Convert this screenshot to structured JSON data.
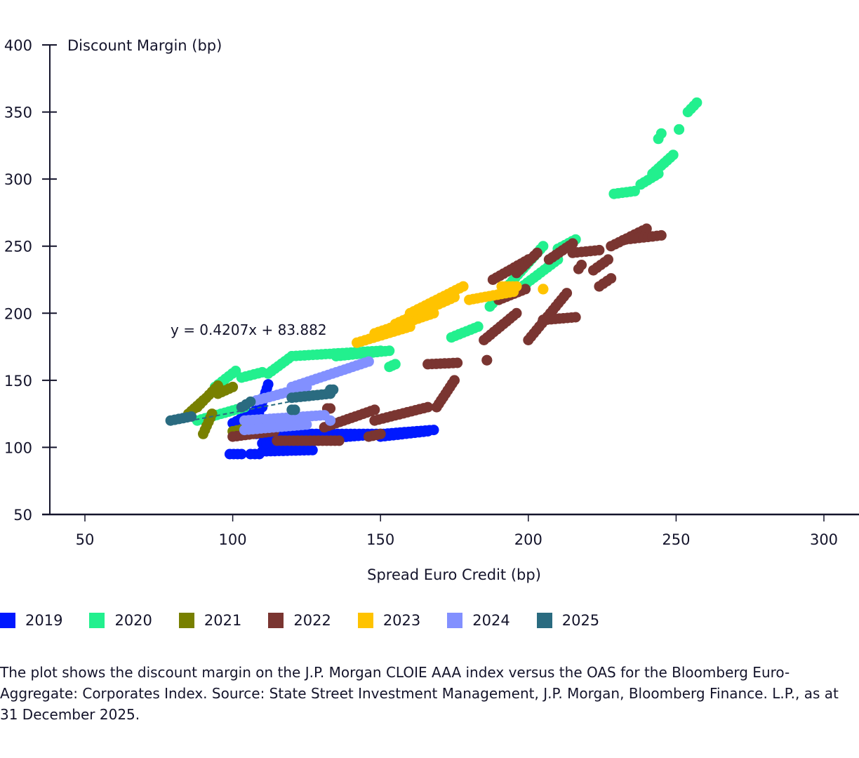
{
  "chart_data": {
    "type": "scatter",
    "title": "",
    "xlabel": "Spread Euro Credit (bp)",
    "ylabel": "Discount Margin (bp)",
    "xlim": [
      40,
      310
    ],
    "ylim": [
      50,
      400
    ],
    "x_ticks": [
      50,
      100,
      150,
      200,
      250,
      300
    ],
    "y_ticks": [
      50,
      100,
      150,
      200,
      250,
      300,
      350,
      400
    ],
    "grid": false,
    "legend_position": "bottom",
    "trendline": {
      "equation": "y = 0.4207x + 83.882",
      "slope": 0.4207,
      "intercept": 83.882,
      "x_range": [
        85,
        125
      ],
      "style": "dashed",
      "color": "#2a6b80"
    },
    "series": [
      {
        "name": "2019",
        "color": "#0019ff",
        "segments": [
          {
            "x0": 99,
            "x1": 103,
            "y0": 95,
            "y1": 95
          },
          {
            "x0": 106,
            "x1": 109,
            "y0": 95,
            "y1": 95
          },
          {
            "x0": 110,
            "x1": 127,
            "y0": 97,
            "y1": 98
          },
          {
            "x0": 110,
            "x1": 168,
            "y0": 103,
            "y1": 113
          },
          {
            "x0": 108,
            "x1": 150,
            "y0": 110,
            "y1": 110
          },
          {
            "x0": 108,
            "x1": 112,
            "y0": 120,
            "y1": 147
          },
          {
            "x0": 100,
            "x1": 110,
            "y0": 118,
            "y1": 130
          },
          {
            "x0": 150,
            "x1": 166,
            "y0": 108,
            "y1": 112
          }
        ]
      },
      {
        "name": "2020",
        "color": "#22f08e",
        "segments": [
          {
            "x0": 94,
            "x1": 101,
            "y0": 145,
            "y1": 157
          },
          {
            "x0": 103,
            "x1": 110,
            "y0": 152,
            "y1": 156
          },
          {
            "x0": 112,
            "x1": 120,
            "y0": 155,
            "y1": 168
          },
          {
            "x0": 120,
            "x1": 150,
            "y0": 168,
            "y1": 172
          },
          {
            "x0": 135,
            "x1": 153,
            "y0": 168,
            "y1": 172
          },
          {
            "x0": 88,
            "x1": 104,
            "y0": 120,
            "y1": 130
          },
          {
            "x0": 153,
            "x1": 155,
            "y0": 160,
            "y1": 162
          },
          {
            "x0": 174,
            "x1": 183,
            "y0": 182,
            "y1": 190
          },
          {
            "x0": 187,
            "x1": 205,
            "y0": 205,
            "y1": 250
          },
          {
            "x0": 195,
            "x1": 210,
            "y0": 215,
            "y1": 240
          },
          {
            "x0": 210,
            "x1": 216,
            "y0": 248,
            "y1": 255
          },
          {
            "x0": 229,
            "x1": 236,
            "y0": 289,
            "y1": 291
          },
          {
            "x0": 238,
            "x1": 244,
            "y0": 296,
            "y1": 304
          },
          {
            "x0": 242,
            "x1": 249,
            "y0": 304,
            "y1": 318
          },
          {
            "x0": 244,
            "x1": 245,
            "y0": 330,
            "y1": 334
          },
          {
            "x0": 251,
            "x1": 251,
            "y0": 337,
            "y1": 337
          },
          {
            "x0": 254,
            "x1": 257,
            "y0": 350,
            "y1": 357
          }
        ]
      },
      {
        "name": "2021",
        "color": "#788000",
        "segments": [
          {
            "x0": 85,
            "x1": 90,
            "y0": 125,
            "y1": 135
          },
          {
            "x0": 88,
            "x1": 95,
            "y0": 130,
            "y1": 146
          },
          {
            "x0": 90,
            "x1": 93,
            "y0": 110,
            "y1": 125
          },
          {
            "x0": 95,
            "x1": 100,
            "y0": 140,
            "y1": 145
          },
          {
            "x0": 100,
            "x1": 113,
            "y0": 112,
            "y1": 118
          }
        ]
      },
      {
        "name": "2022",
        "color": "#7a3531",
        "segments": [
          {
            "x0": 100,
            "x1": 114,
            "y0": 108,
            "y1": 112
          },
          {
            "x0": 115,
            "x1": 136,
            "y0": 105,
            "y1": 105
          },
          {
            "x0": 131,
            "x1": 148,
            "y0": 115,
            "y1": 128
          },
          {
            "x0": 148,
            "x1": 166,
            "y0": 120,
            "y1": 130
          },
          {
            "x0": 132,
            "x1": 133,
            "y0": 129,
            "y1": 129
          },
          {
            "x0": 146,
            "x1": 150,
            "y0": 108,
            "y1": 110
          },
          {
            "x0": 166,
            "x1": 176,
            "y0": 162,
            "y1": 163
          },
          {
            "x0": 169,
            "x1": 175,
            "y0": 130,
            "y1": 150
          },
          {
            "x0": 186,
            "x1": 186,
            "y0": 165,
            "y1": 165
          },
          {
            "x0": 185,
            "x1": 196,
            "y0": 180,
            "y1": 200
          },
          {
            "x0": 188,
            "x1": 200,
            "y0": 225,
            "y1": 240
          },
          {
            "x0": 196,
            "x1": 203,
            "y0": 230,
            "y1": 245
          },
          {
            "x0": 190,
            "x1": 199,
            "y0": 210,
            "y1": 218
          },
          {
            "x0": 200,
            "x1": 213,
            "y0": 180,
            "y1": 215
          },
          {
            "x0": 205,
            "x1": 216,
            "y0": 195,
            "y1": 197
          },
          {
            "x0": 207,
            "x1": 215,
            "y0": 240,
            "y1": 252
          },
          {
            "x0": 215,
            "x1": 224,
            "y0": 245,
            "y1": 247
          },
          {
            "x0": 217,
            "x1": 218,
            "y0": 233,
            "y1": 236
          },
          {
            "x0": 222,
            "x1": 227,
            "y0": 232,
            "y1": 240
          },
          {
            "x0": 224,
            "x1": 228,
            "y0": 220,
            "y1": 226
          },
          {
            "x0": 228,
            "x1": 240,
            "y0": 250,
            "y1": 263
          },
          {
            "x0": 233,
            "x1": 245,
            "y0": 255,
            "y1": 258
          }
        ]
      },
      {
        "name": "2023",
        "color": "#ffc300",
        "segments": [
          {
            "x0": 142,
            "x1": 160,
            "y0": 178,
            "y1": 190
          },
          {
            "x0": 148,
            "x1": 168,
            "y0": 185,
            "y1": 200
          },
          {
            "x0": 155,
            "x1": 175,
            "y0": 192,
            "y1": 212
          },
          {
            "x0": 160,
            "x1": 178,
            "y0": 200,
            "y1": 220
          },
          {
            "x0": 180,
            "x1": 195,
            "y0": 210,
            "y1": 216
          },
          {
            "x0": 191,
            "x1": 196,
            "y0": 220,
            "y1": 220
          },
          {
            "x0": 205,
            "x1": 205,
            "y0": 218,
            "y1": 218
          }
        ]
      },
      {
        "name": "2024",
        "color": "#8290ff",
        "segments": [
          {
            "x0": 108,
            "x1": 125,
            "y0": 135,
            "y1": 145
          },
          {
            "x0": 120,
            "x1": 146,
            "y0": 145,
            "y1": 164
          },
          {
            "x0": 104,
            "x1": 131,
            "y0": 120,
            "y1": 124
          },
          {
            "x0": 104,
            "x1": 125,
            "y0": 113,
            "y1": 117
          },
          {
            "x0": 133,
            "x1": 133,
            "y0": 120,
            "y1": 120
          }
        ]
      },
      {
        "name": "2025",
        "color": "#2a6b80",
        "segments": [
          {
            "x0": 79,
            "x1": 86,
            "y0": 120,
            "y1": 123
          },
          {
            "x0": 103,
            "x1": 106,
            "y0": 130,
            "y1": 134
          },
          {
            "x0": 120,
            "x1": 133,
            "y0": 137,
            "y1": 140
          },
          {
            "x0": 133,
            "x1": 134,
            "y0": 143,
            "y1": 143
          },
          {
            "x0": 120,
            "x1": 121,
            "y0": 128,
            "y1": 128
          }
        ]
      }
    ]
  },
  "axes": {
    "y_title": "Discount Margin (bp)",
    "x_title": "Spread Euro Credit (bp)",
    "y_tick_labels": [
      "400",
      "350",
      "300",
      "250",
      "200",
      "150",
      "100",
      "50"
    ],
    "x_tick_labels": [
      "50",
      "100",
      "150",
      "200",
      "250",
      "300"
    ]
  },
  "trendline_label": "y = 0.4207x + 83.882",
  "legend": {
    "items": [
      {
        "label": "2019",
        "color": "#0019ff"
      },
      {
        "label": "2020",
        "color": "#22f08e"
      },
      {
        "label": "2021",
        "color": "#788000"
      },
      {
        "label": "2022",
        "color": "#7a3531"
      },
      {
        "label": "2023",
        "color": "#ffc300"
      },
      {
        "label": "2024",
        "color": "#8290ff"
      },
      {
        "label": "2025",
        "color": "#2a6b80"
      }
    ]
  },
  "caption": "The plot shows the discount margin on the J.P. Morgan CLOIE AAA index versus the OAS for the Bloomberg Euro-Aggregate: Corporates Index. Source: State Street Investment Management, J.P. Morgan, Bloomberg Finance. L.P., as at 31 December 2025."
}
